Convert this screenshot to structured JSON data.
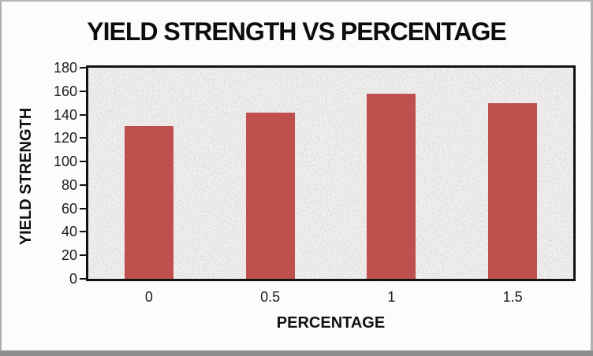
{
  "chart_data": {
    "type": "bar",
    "title": "YIELD STRENGTH VS PERCENTAGE",
    "xlabel": "PERCENTAGE",
    "ylabel": "YIELD STRENGTH",
    "categories": [
      "0",
      "0.5",
      "1",
      "1.5"
    ],
    "values": [
      130,
      142,
      158,
      150
    ],
    "ylim": [
      0,
      180
    ],
    "ytick_step": 20,
    "ytick_labels": [
      "0",
      "20",
      "40",
      "60",
      "80",
      "100",
      "120",
      "140",
      "160",
      "180"
    ],
    "bar_color": "#C0504D",
    "grid": "off",
    "legend": "none",
    "plot_background": "speckled-light-gray-texture",
    "axis_color": "#131313"
  }
}
